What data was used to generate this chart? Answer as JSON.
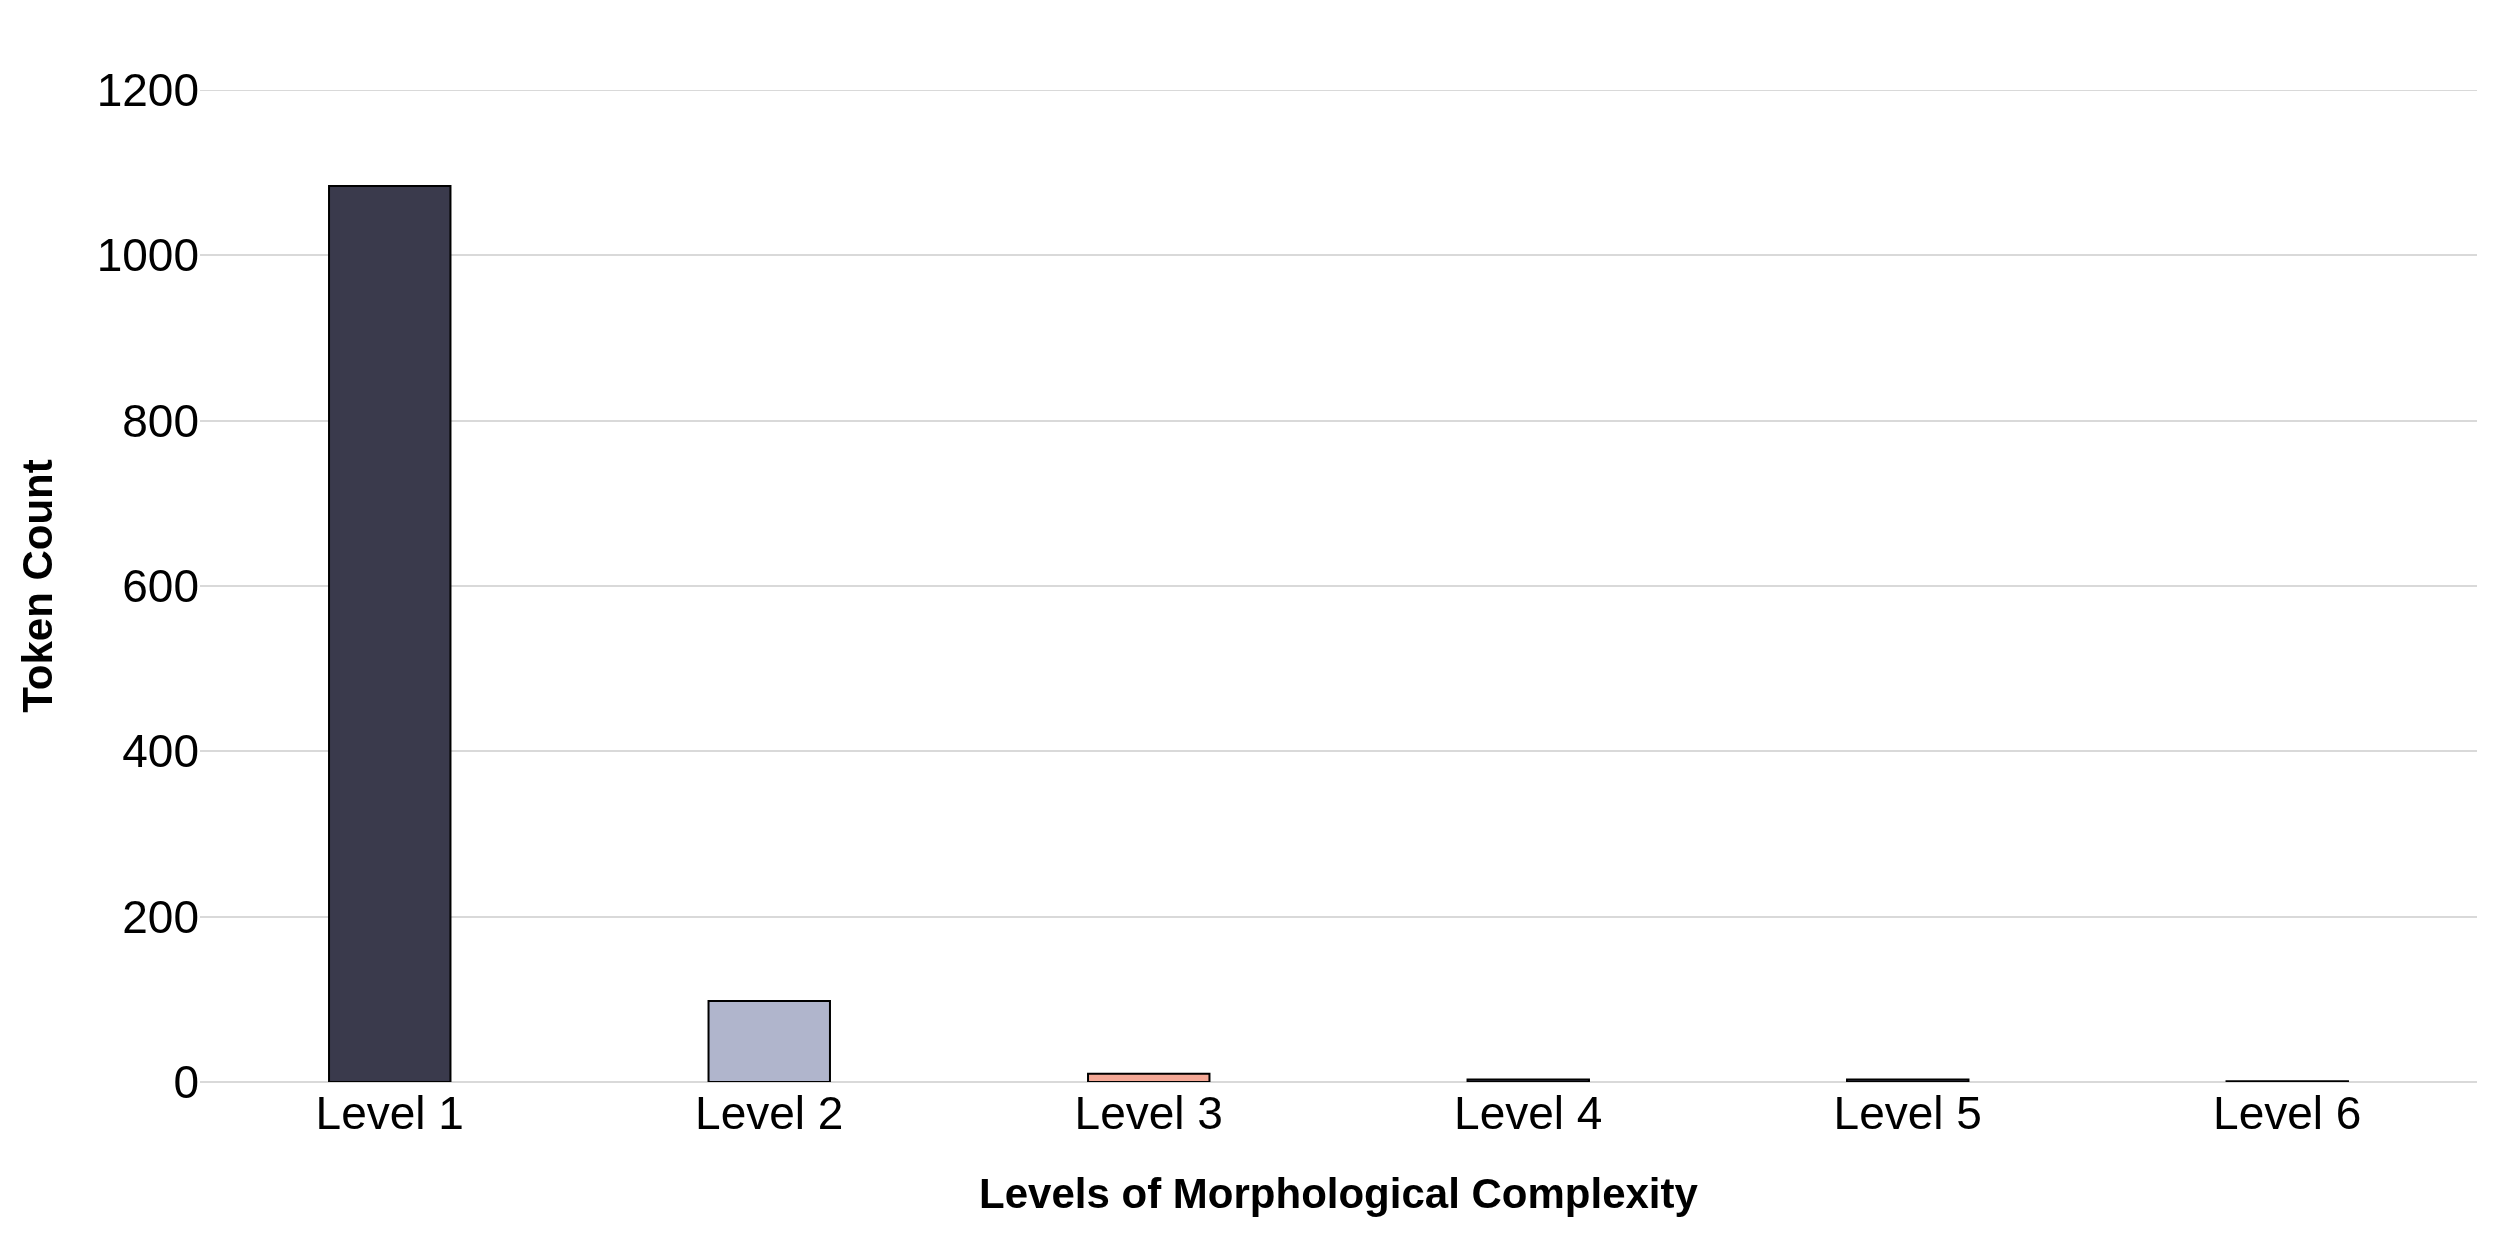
{
  "chart_data": {
    "type": "bar",
    "xlabel": "Levels of Morphological Complexity",
    "ylabel": "Token Count",
    "categories": [
      "Level 1",
      "Level 2",
      "Level 3",
      "Level 4",
      "Level 5",
      "Level 6"
    ],
    "values": [
      1084,
      98,
      10,
      3,
      3,
      1
    ],
    "colors": [
      "#3a3a4c",
      "#b0b5cc",
      "#f4a896",
      "#3a3a4c",
      "#3a3a4c",
      "#3a3a4c"
    ],
    "ylim": [
      0,
      1200
    ],
    "yticks": [
      0,
      200,
      400,
      600,
      800,
      1000,
      1200
    ],
    "grid": "y"
  }
}
